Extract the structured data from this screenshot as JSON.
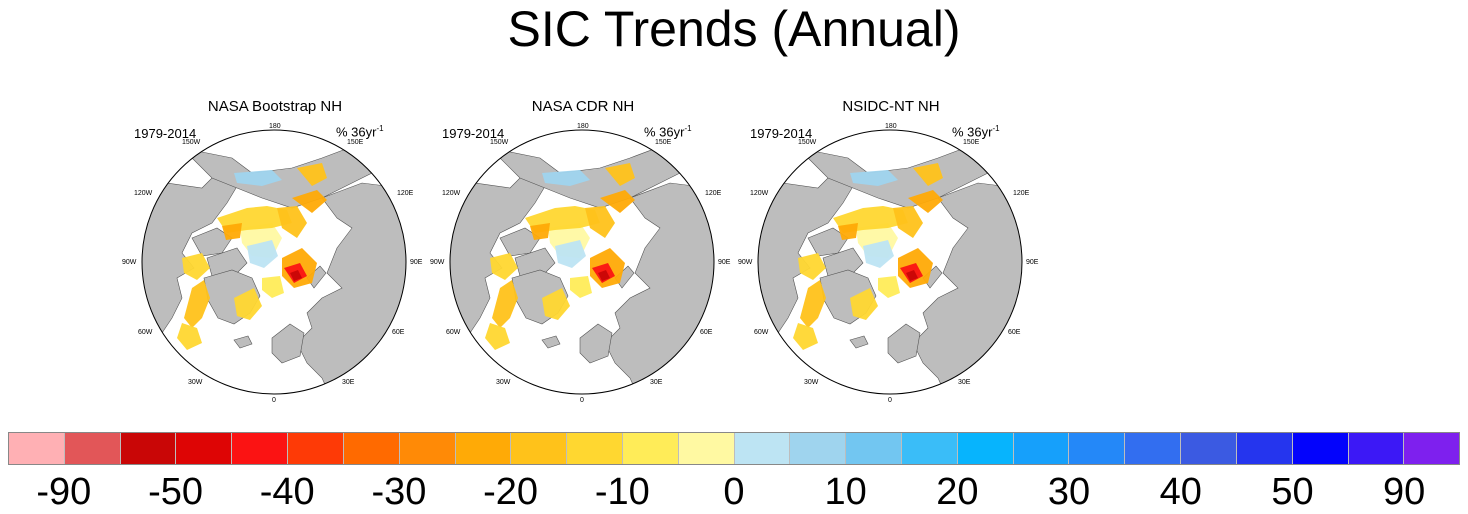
{
  "title": "SIC Trends (Annual)",
  "colors": {
    "land": "#bdbdbd",
    "scale": [
      "#ffb0b4",
      "#e25658",
      "#c90606",
      "#de0505",
      "#fb1313",
      "#fe3a06",
      "#ff6a00",
      "#ff8a06",
      "#ffaa06",
      "#ffc21a",
      "#ffd730",
      "#ffec58",
      "#fff9a2",
      "#bde4f3",
      "#9fd4ee",
      "#72c6f1",
      "#3abdf8",
      "#07b4fd",
      "#16a0fb",
      "#2488f8",
      "#326ef0",
      "#3b5ae2",
      "#2535ee",
      "#0303fc",
      "#3c18f6",
      "#7e20ee"
    ]
  },
  "colorbar_labels": [
    "-90",
    "-50",
    "-40",
    "-30",
    "-20",
    "-10",
    "0",
    "10",
    "20",
    "30",
    "40",
    "50",
    "90"
  ],
  "panels": [
    {
      "title": "NASA Bootstrap NH",
      "period": "1979-2014",
      "units_base": "% 36yr",
      "units_exp": "-1"
    },
    {
      "title": "NASA CDR NH",
      "period": "1979-2014",
      "units_base": "% 36yr",
      "units_exp": "-1"
    },
    {
      "title": "NSIDC-NT NH",
      "period": "1979-2014",
      "units_base": "% 36yr",
      "units_exp": "-1"
    }
  ],
  "lon_labels": {
    "top": "180",
    "top_left": "150W",
    "top_right": "150E",
    "upper_left": "120W",
    "upper_right": "120E",
    "left": "90W",
    "right": "90E",
    "lower_left": "60W",
    "lower_right": "60E",
    "bottom_left": "30W",
    "bottom_right": "30E",
    "bottom": "0"
  }
}
